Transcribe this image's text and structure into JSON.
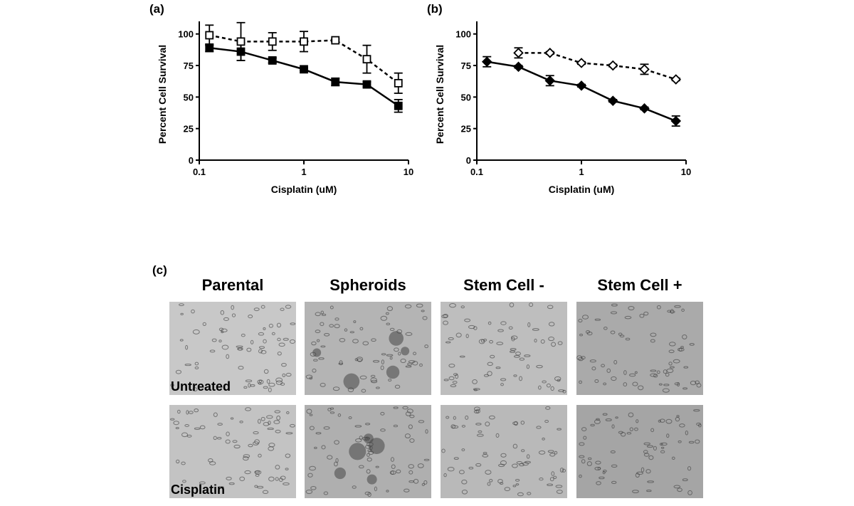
{
  "chart_data": [
    {
      "type": "line",
      "panel_label": "(a)",
      "x_label": "Cisplatin (uM)",
      "y_label": "Percent Cell Survival",
      "x_scale": "log",
      "xlim": [
        0.1,
        10
      ],
      "xticks": [
        0.1,
        1,
        10
      ],
      "ylim": [
        0,
        110
      ],
      "yticks": [
        0,
        25,
        50,
        75,
        100
      ],
      "x": [
        0.125,
        0.25,
        0.5,
        1,
        2,
        4,
        8
      ],
      "series": [
        {
          "color": "#000000",
          "marker": "square",
          "filled": true,
          "dashed": false,
          "values": [
            89,
            86,
            79,
            72,
            62,
            60,
            43
          ],
          "errors": [
            3,
            7,
            2,
            1,
            3,
            2,
            5
          ]
        },
        {
          "color": "#000000",
          "marker": "square",
          "filled": false,
          "dashed": true,
          "values": [
            99,
            94,
            94,
            94,
            95,
            80,
            61
          ],
          "errors": [
            8,
            15,
            7,
            8,
            1,
            11,
            8
          ]
        }
      ]
    },
    {
      "type": "line",
      "panel_label": "(b)",
      "x_label": "Cisplatin (uM)",
      "y_label": "Percent Cell Survival",
      "x_scale": "log",
      "xlim": [
        0.1,
        10
      ],
      "xticks": [
        0.1,
        1,
        10
      ],
      "ylim": [
        0,
        110
      ],
      "yticks": [
        0,
        25,
        50,
        75,
        100
      ],
      "x": [
        0.125,
        0.25,
        0.5,
        1,
        2,
        4,
        8
      ],
      "series": [
        {
          "color": "#000000",
          "marker": "diamond",
          "filled": true,
          "dashed": false,
          "values": [
            78,
            74,
            63,
            59,
            47,
            41,
            31
          ],
          "errors": [
            4,
            1,
            4,
            1,
            1,
            1,
            4
          ]
        },
        {
          "color": "#000000",
          "marker": "diamond",
          "filled": false,
          "dashed": true,
          "values": [
            null,
            85,
            85,
            77,
            75,
            72,
            64
          ],
          "errors": [
            null,
            4,
            1,
            1,
            1,
            4,
            1
          ]
        }
      ]
    }
  ],
  "panel_c": {
    "label": "(c)",
    "columns": [
      "Parental",
      "Spheroids",
      "Stem Cell -",
      "Stem Cell +"
    ],
    "rows": [
      "Untreated",
      "Cisplatin"
    ]
  }
}
